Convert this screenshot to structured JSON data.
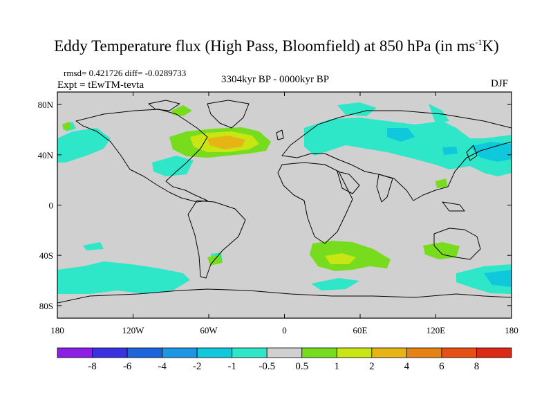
{
  "title": {
    "main": "Eddy Temperature flux (High Pass, Bloomfield) at 850 hPa (in ms",
    "superscript": "-1",
    "suffix": "K)"
  },
  "stats_text": "rmsd= 0.421726 diff= -0.0289733",
  "experiment": "Expt = tEwTM-tevta",
  "period": "3304kyr BP - 0000kyr BP",
  "season": "DJF",
  "lat_ticks": [
    "80N",
    "40N",
    "0",
    "40S",
    "80S"
  ],
  "lon_ticks": [
    "180",
    "120W",
    "60W",
    "0",
    "60E",
    "120E",
    "180"
  ],
  "colorbar": {
    "labels": [
      "-8",
      "-6",
      "-4",
      "-2",
      "-1",
      "-0.5",
      "0.5",
      "1",
      "2",
      "4",
      "6",
      "8"
    ],
    "colors": [
      "#8c1ee6",
      "#3a32e0",
      "#1e64dc",
      "#1e96e6",
      "#10c8dc",
      "#2ee6c8",
      "#d0d0d0",
      "#78dc1e",
      "#c8e614",
      "#e6b414",
      "#e68214",
      "#e65014",
      "#dc2814"
    ]
  },
  "colors": {
    "background": "#d0d0d0",
    "coastline": "#000000"
  }
}
